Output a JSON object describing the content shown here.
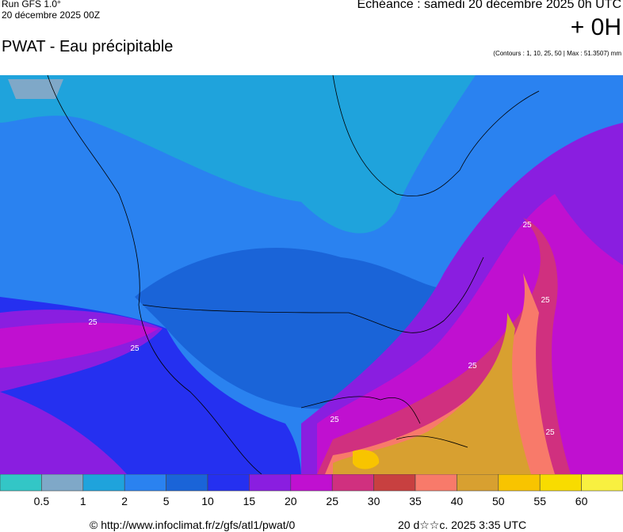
{
  "header": {
    "run": "Run GFS 1.0°",
    "run_date": "20 décembre 2025 00Z",
    "valid": "Echéance : samedi 20 décembre 2025 0h UTC",
    "lead": "+ 0H",
    "title": "PWAT - Eau précipitable",
    "contours": "(Contours : 1, 10, 25, 50 | Max : 51.3507) mm"
  },
  "map": {
    "contour_labels": [
      "25",
      "25",
      "25",
      "25",
      "25",
      "25",
      "25"
    ]
  },
  "legend": {
    "colors": [
      "#33c6c6",
      "#7fa8c8",
      "#1fa3dc",
      "#2a82f0",
      "#1a64d8",
      "#2530f0",
      "#8a1ee0",
      "#c010d0",
      "#d0307f",
      "#c84040",
      "#f87a6a",
      "#d8a030",
      "#f8c400",
      "#f8dc00",
      "#f8f040"
    ],
    "labels": [
      "0.5",
      "1",
      "2",
      "5",
      "10",
      "15",
      "20",
      "25",
      "30",
      "35",
      "40",
      "50",
      "55",
      "60"
    ]
  },
  "footer": {
    "source": "© http://www.infoclimat.fr/z/gfs/atl1/pwat/0",
    "generated": "20 d☆☆c. 2025  3:35 UTC"
  }
}
